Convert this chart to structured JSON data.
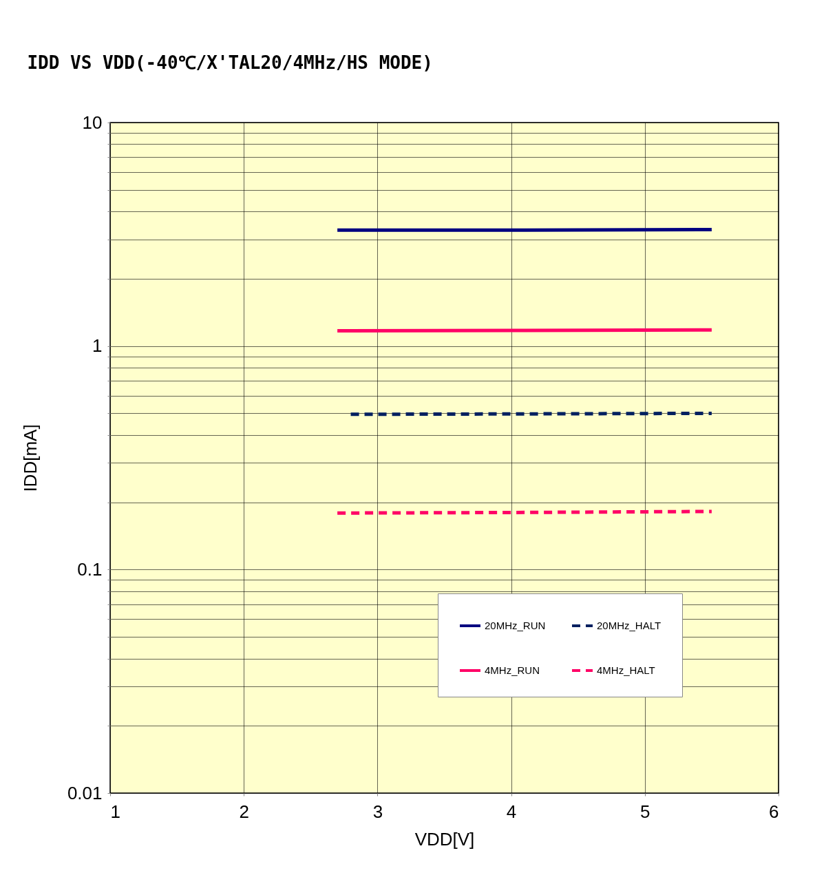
{
  "chart_data": {
    "type": "line",
    "title": "IDD VS VDD(-40℃/X'TAL20/4MHz/HS MODE)",
    "xlabel": "VDD[V]",
    "ylabel": "IDD[mA]",
    "x": [
      2.7,
      4,
      5.5
    ],
    "series": [
      {
        "name": "20MHz_RUN",
        "color": "#000080",
        "line_style": "solid",
        "values": [
          3.3,
          3.3,
          3.32
        ]
      },
      {
        "name": "20MHz_HALT",
        "color": "#002060",
        "line_style": "dashed",
        "x": [
          2.8,
          4,
          5.5
        ],
        "values": [
          0.495,
          0.497,
          0.5
        ]
      },
      {
        "name": "4MHz_RUN",
        "color": "#ff0066",
        "line_style": "solid",
        "values": [
          1.17,
          1.175,
          1.18
        ]
      },
      {
        "name": "4MHz_HALT",
        "color": "#ff0066",
        "line_style": "dashed",
        "values": [
          0.179,
          0.18,
          0.182
        ]
      }
    ],
    "xlim": [
      1,
      6
    ],
    "xticks": [
      1,
      2,
      3,
      4,
      5,
      6
    ],
    "ylim": [
      0.01,
      10
    ],
    "log": true,
    "yticks": [
      0.01,
      {
        "value": 0.02,
        "label": null
      },
      {
        "value": 0.03,
        "label": null
      },
      {
        "value": 0.04,
        "label": null
      },
      {
        "value": 0.05,
        "label": null
      },
      {
        "value": 0.06,
        "label": null
      },
      {
        "value": 0.07,
        "label": null
      },
      {
        "value": 0.08,
        "label": null
      },
      {
        "value": 0.09,
        "label": null
      },
      0.1,
      {
        "value": 0.2,
        "label": null
      },
      {
        "value": 0.3,
        "label": null
      },
      {
        "value": 0.4,
        "label": null
      },
      {
        "value": 0.5,
        "label": null
      },
      {
        "value": 0.6,
        "label": null
      },
      {
        "value": 0.7,
        "label": null
      },
      {
        "value": 0.8,
        "label": null
      },
      {
        "value": 0.9,
        "label": null
      },
      1,
      {
        "value": 2,
        "label": null
      },
      {
        "value": 3,
        "label": null
      },
      {
        "value": 4,
        "label": null
      },
      {
        "value": 5,
        "label": null
      },
      {
        "value": 6,
        "label": null
      },
      {
        "value": 7,
        "label": null
      },
      {
        "value": 8,
        "label": null
      },
      {
        "value": 9,
        "label": null
      },
      10
    ],
    "grid": true,
    "legend": "bottom right"
  }
}
